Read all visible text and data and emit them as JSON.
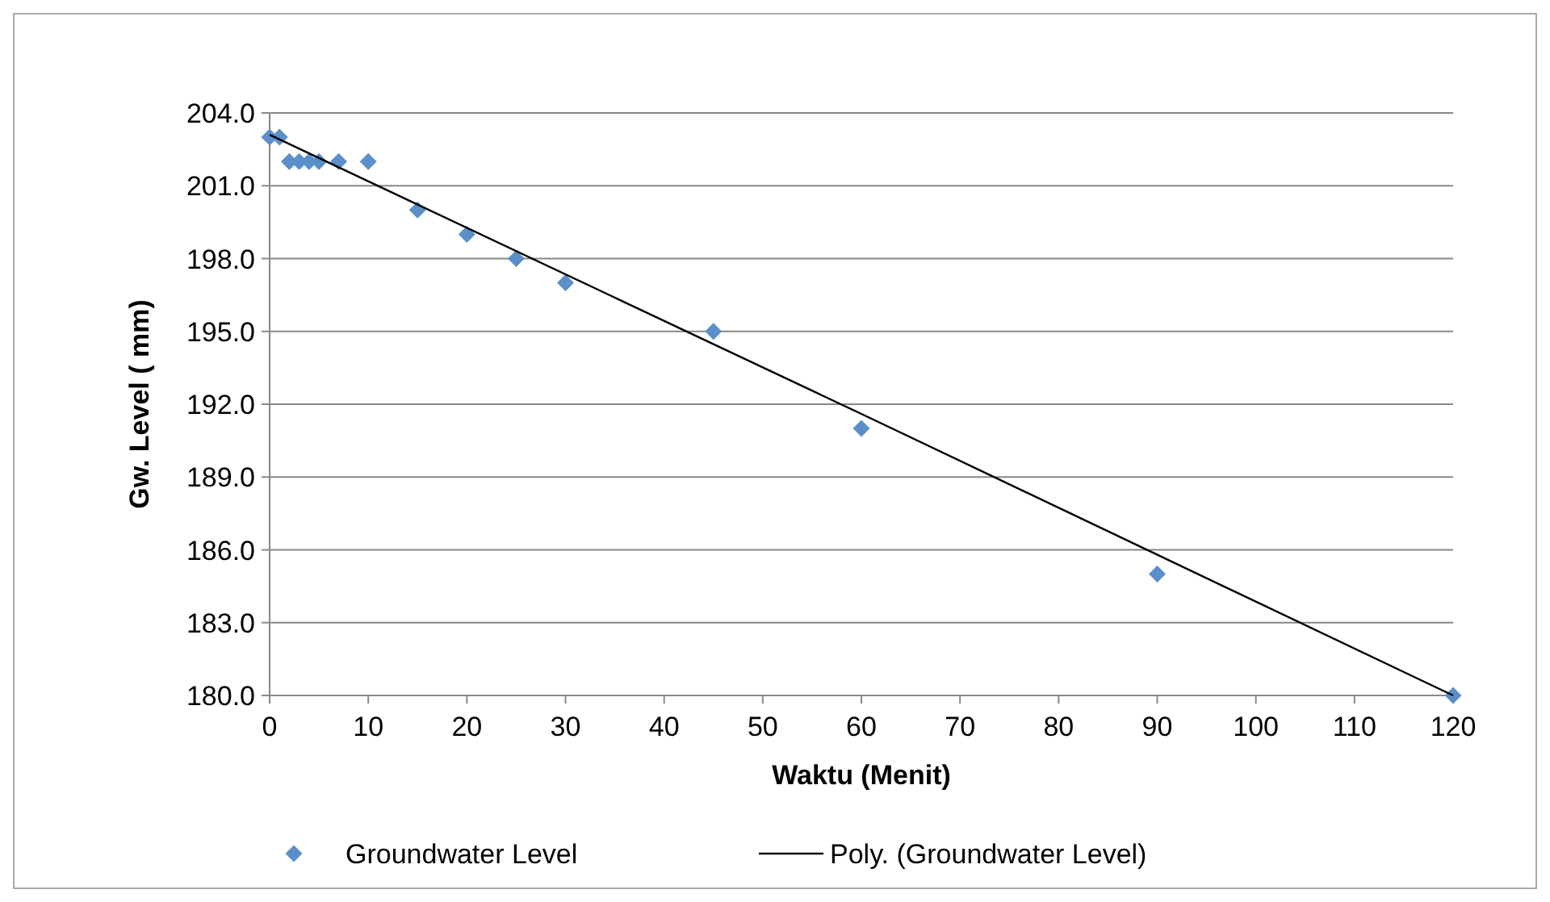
{
  "chart_data": {
    "type": "scatter",
    "xlabel": "Waktu (Menit)",
    "ylabel": "Gw. Level ( mm)",
    "xlim": [
      0,
      120
    ],
    "xticks": [
      0,
      10,
      20,
      30,
      40,
      50,
      60,
      70,
      80,
      90,
      100,
      110,
      120
    ],
    "ylim": [
      180,
      204
    ],
    "yticks": [
      {
        "value": 180,
        "label": "180.0"
      },
      {
        "value": 183,
        "label": "183.0"
      },
      {
        "value": 186,
        "label": "186.0"
      },
      {
        "value": 189,
        "label": "189.0"
      },
      {
        "value": 192,
        "label": "192.0"
      },
      {
        "value": 195,
        "label": "195.0"
      },
      {
        "value": 198,
        "label": "198.0"
      },
      {
        "value": 201,
        "label": "201.0"
      },
      {
        "value": 204,
        "label": "204.0"
      }
    ],
    "grid": "y",
    "legend": "bottom",
    "series": [
      {
        "name": "Groundwater Level",
        "color": "#5b8fc9",
        "marker": "diamond",
        "x": [
          0,
          1,
          2,
          3,
          4,
          5,
          7,
          10,
          15,
          20,
          25,
          30,
          45,
          60,
          90,
          120
        ],
        "values": [
          203,
          203,
          202,
          202,
          202,
          202,
          202,
          202,
          200,
          199,
          198,
          197,
          195,
          191,
          185,
          180
        ]
      },
      {
        "name": "Poly. (Groundwater Level)",
        "type": "line",
        "color": "#000000",
        "line_style": "solid",
        "marker": "none",
        "x": [
          0,
          60,
          120
        ],
        "values": [
          203.1,
          191.6,
          180
        ]
      }
    ]
  }
}
